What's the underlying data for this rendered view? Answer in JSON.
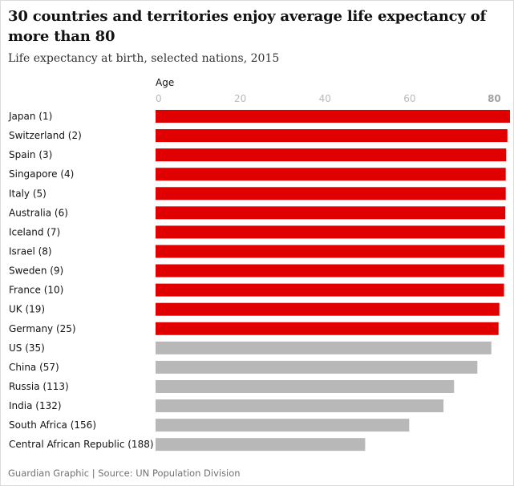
{
  "header": {
    "title": "30 countries and territories enjoy average life expectancy of more than 80",
    "subtitle": "Life expectancy at birth, selected nations, 2015"
  },
  "footer": {
    "source": "Guardian Graphic | Source: UN Population Division"
  },
  "colors": {
    "highlight": "#e00000",
    "default": "#b8b8b8"
  },
  "chart_data": {
    "type": "bar",
    "orientation": "horizontal",
    "title": "30 countries and territories enjoy average life expectancy of more than 80",
    "subtitle": "Life expectancy at birth, selected nations, 2015",
    "xlabel": "Age",
    "ylabel": "",
    "xlim": [
      0,
      82
    ],
    "ticks": [
      0,
      20,
      40,
      60,
      80
    ],
    "highlight_tick": 80,
    "grid": false,
    "categories": [
      "Japan (1)",
      "Switzerland (2)",
      "Spain (3)",
      "Singapore (4)",
      "Italy (5)",
      "Australia (6)",
      "Iceland (7)",
      "Israel (8)",
      "Sweden (9)",
      "France (10)",
      "UK (19)",
      "Germany (25)",
      "US (35)",
      "China (57)",
      "Russia (113)",
      "India (132)",
      "South Africa (156)",
      "Central African Republic (188)"
    ],
    "values": [
      83.7,
      83.1,
      82.8,
      82.7,
      82.7,
      82.6,
      82.5,
      82.4,
      82.3,
      82.3,
      81.2,
      81.0,
      79.3,
      76.0,
      70.5,
      68.0,
      59.9,
      49.5
    ],
    "highlighted": [
      true,
      true,
      true,
      true,
      true,
      true,
      true,
      true,
      true,
      true,
      true,
      true,
      false,
      false,
      false,
      false,
      false,
      false
    ],
    "source": "Guardian Graphic | Source: UN Population Division"
  }
}
